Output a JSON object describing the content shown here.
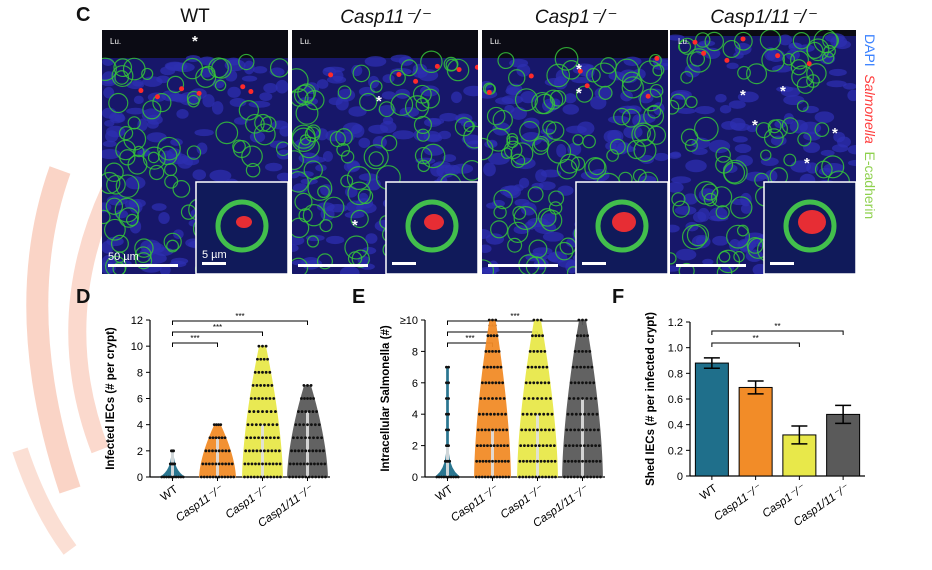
{
  "panel_c": {
    "letter": "C",
    "columns": [
      {
        "title": "WT",
        "italic": false
      },
      {
        "title": "Casp11⁻/⁻",
        "italic": true
      },
      {
        "title": "Casp1⁻/⁻",
        "italic": true
      },
      {
        "title": "Casp1/11⁻/⁻",
        "italic": true
      }
    ],
    "lumen_label": "Lu.",
    "asterisk": "*",
    "scale_main": "50 µm",
    "scale_inset": "5 µm",
    "legend": [
      {
        "text": "DAPI",
        "color": "#3b82ff",
        "italic": false
      },
      {
        "text": "Salmonella",
        "color": "#ff3b3b",
        "italic": true
      },
      {
        "text": "E-cadherin",
        "color": "#8fd14f",
        "italic": false
      }
    ]
  },
  "chart_data": [
    {
      "panel": "D",
      "type": "violin",
      "ylabel": "Infected IECs (# per crypt)",
      "categories": [
        "WT",
        "Casp11⁻/⁻",
        "Casp1⁻/⁻",
        "Casp1/11⁻/⁻"
      ],
      "colors": [
        "#1f6f8b",
        "#f28c28",
        "#e8e84a",
        "#5a5a5a"
      ],
      "ylim": [
        0,
        12
      ],
      "yticks": [
        0,
        2,
        4,
        6,
        8,
        10,
        12
      ],
      "max_values": [
        2,
        4,
        10,
        7
      ],
      "medians": [
        0,
        1,
        2,
        3
      ],
      "significance": [
        {
          "from": 0,
          "to": 1,
          "label": "***"
        },
        {
          "from": 0,
          "to": 2,
          "label": "***"
        },
        {
          "from": 0,
          "to": 3,
          "label": "***"
        }
      ]
    },
    {
      "panel": "E",
      "type": "violin",
      "ylabel": "Intracellular Salmonella (#)",
      "categories": [
        "WT",
        "Casp11⁻/⁻",
        "Casp1⁻/⁻",
        "Casp1/11⁻/⁻"
      ],
      "colors": [
        "#1f6f8b",
        "#f28c28",
        "#e8e84a",
        "#5a5a5a"
      ],
      "ylim": [
        0,
        10
      ],
      "yticks": [
        "0",
        "2",
        "4",
        "6",
        "8",
        "≥10"
      ],
      "max_values": [
        7,
        10,
        10,
        10
      ],
      "medians": [
        0,
        1,
        2,
        3
      ],
      "significance": [
        {
          "from": 0,
          "to": 1,
          "label": "***"
        },
        {
          "from": 0,
          "to": 2,
          "label": "***"
        },
        {
          "from": 0,
          "to": 3,
          "label": "***"
        }
      ]
    },
    {
      "panel": "F",
      "type": "bar",
      "ylabel": "Shed IECs (# per infected crypt)",
      "categories": [
        "WT",
        "Casp11⁻/⁻",
        "Casp1⁻/⁻",
        "Casp1/11⁻/⁻"
      ],
      "colors": [
        "#1f6f8b",
        "#f28c28",
        "#e8e84a",
        "#5a5a5a"
      ],
      "values": [
        0.88,
        0.69,
        0.32,
        0.48
      ],
      "errors": [
        0.04,
        0.05,
        0.07,
        0.07
      ],
      "ylim": [
        0,
        1.2
      ],
      "yticks": [
        "0",
        "0.2",
        "0.4",
        "0.6",
        "0.8",
        "1.0",
        "1.2"
      ],
      "significance": [
        {
          "from": 0,
          "to": 2,
          "label": "**"
        },
        {
          "from": 0,
          "to": 3,
          "label": "**"
        }
      ]
    }
  ]
}
